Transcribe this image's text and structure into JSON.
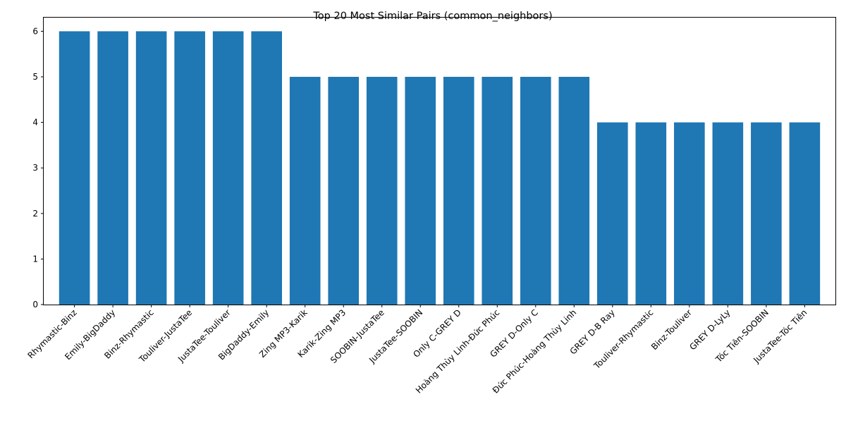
{
  "chart_data": {
    "type": "bar",
    "title": "Top 20 Most Similar Pairs (common_neighbors)",
    "xlabel": "",
    "ylabel": "",
    "categories": [
      "Rhymastic-Binz",
      "Emily-BigDaddy",
      "Binz-Rhymastic",
      "Touliver-JustaTee",
      "JustaTee-Touliver",
      "BigDaddy-Emily",
      "Zing MP3-Karik",
      "Karik-Zing MP3",
      "SOOBIN-JustaTee",
      "JustaTee-SOOBIN",
      "Only C-GREY D",
      "Hoàng Thùy Linh-Đức Phúc",
      "GREY D-Only C",
      "Đức Phúc-Hoàng Thùy Linh",
      "GREY D-B Ray",
      "Touliver-Rhymastic",
      "Binz-Touliver",
      "GREY D-LyLy",
      "Tóc Tiên-SOOBIN",
      "JustaTee-Tóc Tiên"
    ],
    "values": [
      6,
      6,
      6,
      6,
      6,
      6,
      5,
      5,
      5,
      5,
      5,
      5,
      5,
      5,
      4,
      4,
      4,
      4,
      4,
      4
    ],
    "yticks": [
      "0",
      "1",
      "2",
      "3",
      "4",
      "5",
      "6"
    ],
    "ylim": [
      0,
      6.3
    ],
    "bar_color": "#1f77b4",
    "grid": false,
    "legend": "none"
  }
}
